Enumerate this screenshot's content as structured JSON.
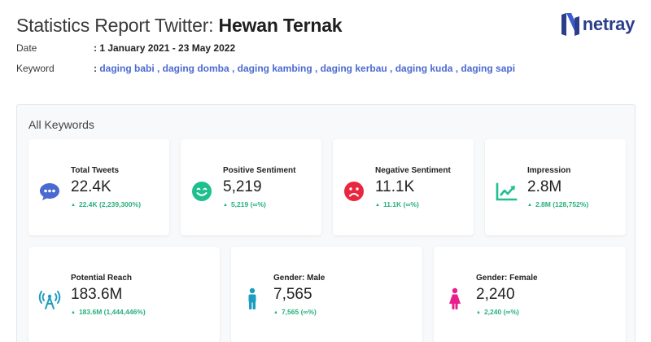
{
  "header": {
    "title_prefix": "Statistics Report Twitter: ",
    "title_subject": "Hewan Ternak",
    "date_label": "Date",
    "date_value": ": 1 January 2021 - 23 May 2022",
    "keyword_label": "Keyword",
    "keyword_colon": ": ",
    "keyword_value": "daging babi , daging domba , daging kambing , daging kerbau , daging kuda , daging sapi"
  },
  "logo": {
    "text": "netray",
    "icon": "netray-n-logo",
    "color": "#2c3e8a"
  },
  "panel": {
    "title": "All Keywords"
  },
  "colors": {
    "accent_green": "#26b07c",
    "keyword_blue": "#4a6ad1"
  },
  "stats_top": [
    {
      "label": "Total Tweets",
      "value": "22.4K",
      "delta": "22.4K (2,239,300%)",
      "icon": "chat-bubble-icon",
      "icon_color": "#4a6ad1"
    },
    {
      "label": "Positive Sentiment",
      "value": "5,219",
      "delta": "5,219 (∞%)",
      "icon": "smiley-icon",
      "icon_color": "#1fbf8f"
    },
    {
      "label": "Negative Sentiment",
      "value": "11.1K",
      "delta": "11.1K (∞%)",
      "icon": "frown-icon",
      "icon_color": "#e8263f"
    },
    {
      "label": "Impression",
      "value": "2.8M",
      "delta": "2.8M (128,752%)",
      "icon": "trend-chart-icon",
      "icon_color": "#1fbf8f"
    }
  ],
  "stats_bottom": [
    {
      "label": "Potential Reach",
      "value": "183.6M",
      "delta": "183.6M (1,444,446%)",
      "icon": "broadcast-tower-icon",
      "icon_color": "#1e9dbf"
    },
    {
      "label": "Gender: Male",
      "value": "7,565",
      "delta": "7,565 (∞%)",
      "icon": "male-icon",
      "icon_color": "#1e9dbf"
    },
    {
      "label": "Gender: Female",
      "value": "2,240",
      "delta": "2,240 (∞%)",
      "icon": "female-icon",
      "icon_color": "#e81e8c"
    }
  ]
}
